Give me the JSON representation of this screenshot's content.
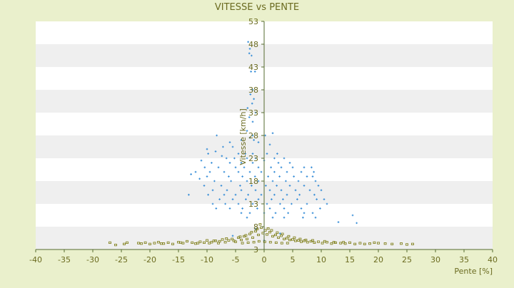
{
  "chart_data": {
    "type": "scatter",
    "title": "VITESSE vs PENTE",
    "xlabel": "Pente [%]",
    "ylabel": "Vitesse [km/h]",
    "xlim": [
      -40,
      40
    ],
    "ylim": [
      3,
      53
    ],
    "x_ticks": [
      -40,
      -35,
      -30,
      -25,
      -20,
      -15,
      -10,
      -5,
      0,
      5,
      10,
      15,
      20,
      25,
      30,
      35,
      40
    ],
    "y_ticks": [
      3,
      8,
      13,
      18,
      23,
      28,
      33,
      38,
      43,
      48,
      53
    ],
    "grid": "alternating horizontal bands",
    "legend": "none",
    "colors": {
      "background": "#eaf0cc",
      "plot_band_light": "#ffffff",
      "plot_band_dark": "#efefef",
      "axis": "#556b2f",
      "series_blue": "#3a8fd8",
      "series_olive": "#7a7a10",
      "text": "#6b6b20"
    },
    "series": [
      {
        "color": "#3a8fd8",
        "points": [
          [
            -2.8,
            48.5
          ],
          [
            -2.5,
            47
          ],
          [
            -2.6,
            46
          ],
          [
            -2.2,
            45.5
          ],
          [
            -2.3,
            42
          ],
          [
            -1.6,
            42
          ],
          [
            -2,
            38
          ],
          [
            -2.4,
            37
          ],
          [
            -1.8,
            36
          ],
          [
            -2.1,
            35
          ],
          [
            -2.9,
            34
          ],
          [
            -1.5,
            33
          ],
          [
            -2.6,
            32
          ],
          [
            -2,
            31
          ],
          [
            -3,
            29
          ],
          [
            -2,
            28
          ],
          [
            0.2,
            28
          ],
          [
            1.5,
            28.5
          ],
          [
            -8.3,
            28
          ],
          [
            -2.5,
            27.5
          ],
          [
            -1.8,
            27
          ],
          [
            -4,
            27
          ],
          [
            -1,
            26.5
          ],
          [
            1,
            26
          ],
          [
            -6,
            26.5
          ],
          [
            -7.2,
            25.5
          ],
          [
            -5.5,
            25.5
          ],
          [
            -10,
            25
          ],
          [
            -8.5,
            24.5
          ],
          [
            -9.8,
            24
          ],
          [
            -4.5,
            24
          ],
          [
            -3.3,
            24
          ],
          [
            -2,
            24
          ],
          [
            2.3,
            24
          ],
          [
            0.5,
            24
          ],
          [
            -6.6,
            23
          ],
          [
            -5.2,
            23
          ],
          [
            -7.4,
            23.5
          ],
          [
            -3,
            23
          ],
          [
            -1.5,
            23
          ],
          [
            1.8,
            23
          ],
          [
            3.5,
            23
          ],
          [
            -11,
            22.5
          ],
          [
            -9.2,
            22
          ],
          [
            -6,
            22
          ],
          [
            -4,
            22
          ],
          [
            -2,
            22
          ],
          [
            0,
            22.5
          ],
          [
            2.5,
            22
          ],
          [
            4.5,
            22
          ],
          [
            -10.4,
            21
          ],
          [
            -8,
            21
          ],
          [
            -5,
            21
          ],
          [
            -3.5,
            21
          ],
          [
            -1,
            21
          ],
          [
            1.2,
            21
          ],
          [
            3,
            21
          ],
          [
            5,
            21
          ],
          [
            7,
            21
          ],
          [
            8.3,
            21
          ],
          [
            -12,
            20
          ],
          [
            -9.5,
            20
          ],
          [
            -7,
            20
          ],
          [
            -4.5,
            20
          ],
          [
            -2.5,
            20
          ],
          [
            -0.5,
            20
          ],
          [
            1.8,
            20
          ],
          [
            4,
            20
          ],
          [
            6.5,
            20
          ],
          [
            8.7,
            20
          ],
          [
            -12.8,
            19.5
          ],
          [
            -10,
            19
          ],
          [
            -6.2,
            19
          ],
          [
            -3.8,
            19
          ],
          [
            -1.6,
            19
          ],
          [
            0.7,
            19
          ],
          [
            2.7,
            19
          ],
          [
            5.2,
            19
          ],
          [
            7.5,
            19
          ],
          [
            8.5,
            19
          ],
          [
            -11.3,
            18.5
          ],
          [
            -8.7,
            18
          ],
          [
            -5.8,
            18
          ],
          [
            -3,
            18
          ],
          [
            -1,
            18
          ],
          [
            1.5,
            18
          ],
          [
            3.8,
            18
          ],
          [
            6,
            18
          ],
          [
            9,
            18
          ],
          [
            -10.5,
            17
          ],
          [
            -7.5,
            17
          ],
          [
            -4.2,
            17
          ],
          [
            -2.2,
            17
          ],
          [
            0.3,
            17
          ],
          [
            2.2,
            17
          ],
          [
            4.5,
            17
          ],
          [
            7,
            17
          ],
          [
            9.5,
            17
          ],
          [
            -9,
            16
          ],
          [
            -6.5,
            16
          ],
          [
            -4,
            16
          ],
          [
            -1.5,
            16
          ],
          [
            1,
            16
          ],
          [
            3,
            16
          ],
          [
            5.5,
            16
          ],
          [
            8,
            16
          ],
          [
            10,
            16
          ],
          [
            -13.2,
            15
          ],
          [
            -9.8,
            15
          ],
          [
            -7,
            15
          ],
          [
            -5,
            15
          ],
          [
            -2.8,
            15
          ],
          [
            -0.5,
            15
          ],
          [
            1.8,
            15
          ],
          [
            4,
            15
          ],
          [
            6.2,
            15
          ],
          [
            8.8,
            15
          ],
          [
            -7.8,
            14
          ],
          [
            -5.5,
            14
          ],
          [
            -3.2,
            14
          ],
          [
            -1,
            14
          ],
          [
            1.3,
            14
          ],
          [
            3.3,
            14
          ],
          [
            5.8,
            14
          ],
          [
            9.2,
            14
          ],
          [
            10.5,
            14
          ],
          [
            -9,
            13
          ],
          [
            -6.8,
            13
          ],
          [
            -4.5,
            13
          ],
          [
            -2,
            13
          ],
          [
            0.5,
            13
          ],
          [
            2.8,
            13
          ],
          [
            4.8,
            13
          ],
          [
            7.5,
            13
          ],
          [
            11,
            13
          ],
          [
            -8.4,
            12
          ],
          [
            -6,
            12
          ],
          [
            -3.8,
            12
          ],
          [
            -1.2,
            12
          ],
          [
            1,
            12
          ],
          [
            3.5,
            12
          ],
          [
            6.5,
            12
          ],
          [
            9.8,
            12
          ],
          [
            -4,
            11
          ],
          [
            -2.5,
            11
          ],
          [
            0,
            11
          ],
          [
            2,
            11
          ],
          [
            4.2,
            11
          ],
          [
            7,
            11
          ],
          [
            8.5,
            11
          ],
          [
            -3,
            10
          ],
          [
            1.5,
            10
          ],
          [
            3.5,
            10
          ],
          [
            6.8,
            10
          ],
          [
            9,
            10
          ],
          [
            15.5,
            10.5
          ],
          [
            13,
            9
          ],
          [
            16.2,
            8.8
          ],
          [
            -5.5,
            6
          ],
          [
            2.8,
            6.5
          ],
          [
            0,
            5
          ],
          [
            -1.5,
            7.5
          ]
        ]
      },
      {
        "color": "#7a7a10",
        "points": [
          [
            -27,
            4.5
          ],
          [
            -26,
            4
          ],
          [
            -24.5,
            4.2
          ],
          [
            -24,
            4.5
          ],
          [
            -21.5,
            4.3
          ],
          [
            -20.8,
            4.5
          ],
          [
            -20,
            4.2
          ],
          [
            -19.2,
            4.4
          ],
          [
            -18.5,
            4.6
          ],
          [
            -17.6,
            4.3
          ],
          [
            -16.8,
            4.5
          ],
          [
            -16,
            4.2
          ],
          [
            -15,
            4.6
          ],
          [
            -14.2,
            4.4
          ],
          [
            -13.5,
            4.8
          ],
          [
            -12.6,
            4.5
          ],
          [
            -12,
            4.3
          ],
          [
            -11.2,
            4.7
          ],
          [
            -10.5,
            4.5
          ],
          [
            -10,
            5
          ],
          [
            -9.2,
            4.6
          ],
          [
            -8.5,
            4.9
          ],
          [
            -8,
            4.4
          ],
          [
            -7.3,
            5.2
          ],
          [
            -6.8,
            4.6
          ],
          [
            -6.2,
            5
          ],
          [
            -5.6,
            5.3
          ],
          [
            -5,
            4.7
          ],
          [
            -4.5,
            5.6
          ],
          [
            -4,
            5.1
          ],
          [
            -3.5,
            5.9
          ],
          [
            -3,
            5.3
          ],
          [
            -2.5,
            6.4
          ],
          [
            -2,
            5.6
          ],
          [
            -1.5,
            7
          ],
          [
            -1,
            6.2
          ],
          [
            -0.5,
            7.8
          ],
          [
            -0.2,
            6.6
          ],
          [
            0.2,
            7.2
          ],
          [
            0.5,
            6.3
          ],
          [
            1,
            6.8
          ],
          [
            1.5,
            5.9
          ],
          [
            2,
            6.2
          ],
          [
            2.5,
            5.6
          ],
          [
            3,
            6
          ],
          [
            3.5,
            5.3
          ],
          [
            4,
            5.5
          ],
          [
            4.5,
            5.1
          ],
          [
            5,
            5.2
          ],
          [
            5.5,
            4.9
          ],
          [
            6,
            5
          ],
          [
            6.5,
            4.7
          ],
          [
            7,
            4.9
          ],
          [
            7.6,
            4.6
          ],
          [
            8.2,
            4.8
          ],
          [
            8.8,
            4.5
          ],
          [
            9.5,
            4.7
          ],
          [
            10.2,
            4.4
          ],
          [
            11,
            4.6
          ],
          [
            11.8,
            4.3
          ],
          [
            12.5,
            4.5
          ],
          [
            13.4,
            4.4
          ],
          [
            14.2,
            4.3
          ],
          [
            15,
            4.5
          ],
          [
            15.9,
            4.2
          ],
          [
            16.8,
            4.4
          ],
          [
            17.6,
            4.2
          ],
          [
            18.5,
            4.3
          ],
          [
            20,
            4.4
          ],
          [
            21.2,
            4.3
          ],
          [
            22.4,
            4.2
          ],
          [
            24,
            4.3
          ],
          [
            25,
            4.1
          ],
          [
            26,
            4.2
          ],
          [
            -9.6,
            4.4
          ],
          [
            -7.8,
            4.8
          ],
          [
            -6.6,
            5.4
          ],
          [
            -5.3,
            4.9
          ],
          [
            -4.2,
            5.8
          ],
          [
            -3.2,
            6.1
          ],
          [
            -2.2,
            6.8
          ],
          [
            -1.2,
            7.5
          ],
          [
            -0.7,
            8.5
          ],
          [
            0.7,
            7.6
          ],
          [
            1.3,
            7.2
          ],
          [
            2.3,
            6.7
          ],
          [
            3.2,
            6.4
          ],
          [
            4.3,
            5.9
          ],
          [
            5.3,
            5.6
          ],
          [
            6.3,
            5.3
          ],
          [
            7.3,
            5.1
          ],
          [
            8.5,
            5
          ],
          [
            -3.8,
            4.4
          ],
          [
            -2.8,
            4.5
          ],
          [
            -1.8,
            4.6
          ],
          [
            -0.9,
            4.8
          ],
          [
            0.1,
            4.7
          ],
          [
            1.1,
            4.6
          ],
          [
            2.1,
            4.5
          ],
          [
            3.1,
            4.4
          ],
          [
            4.1,
            4.4
          ],
          [
            -8.8,
            4.9
          ],
          [
            -11.6,
            4.4
          ],
          [
            -14.6,
            4.5
          ],
          [
            10.6,
            4.8
          ],
          [
            12.2,
            4.6
          ],
          [
            13.9,
            4.6
          ],
          [
            -18,
            4.3
          ],
          [
            -22,
            4.4
          ],
          [
            19.3,
            4.5
          ]
        ]
      }
    ]
  }
}
